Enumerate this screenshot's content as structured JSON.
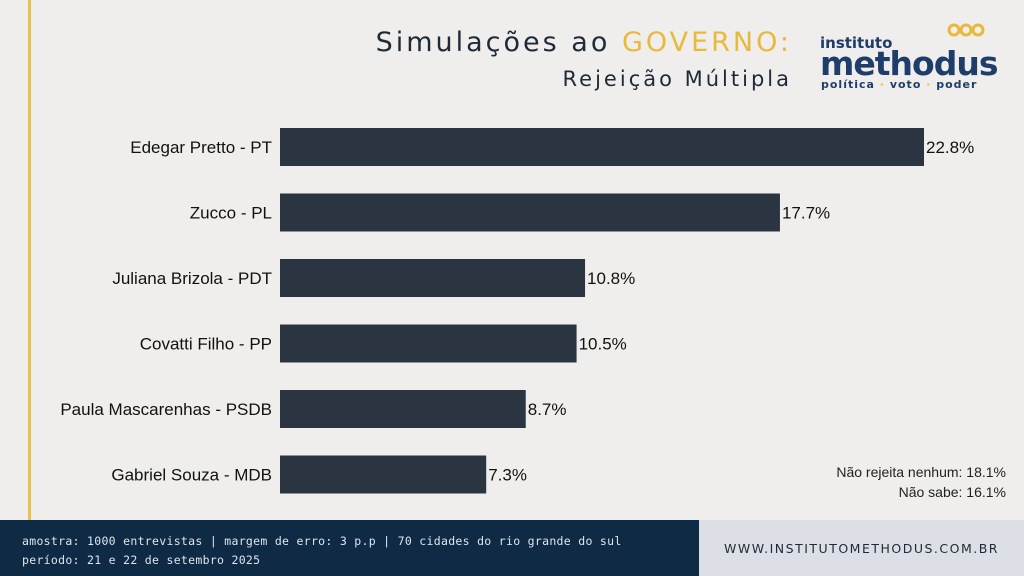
{
  "header": {
    "title_prefix": "Simulações ao ",
    "title_highlight": "GOVERNO:",
    "subtitle": "Rejeição Múltipla"
  },
  "logo": {
    "small": "instituto",
    "big": "methodus",
    "tag": [
      "política",
      "voto",
      "poder"
    ],
    "tag_separator": "·"
  },
  "colors": {
    "bar": "#2b3542",
    "accent": "#e8b93a",
    "footer_dark": "#0e2a45",
    "footer_light": "#dcdfe5"
  },
  "chart_data": {
    "type": "bar",
    "orientation": "horizontal",
    "categories": [
      "Edegar Pretto - PT",
      "Zucco - PL",
      "Juliana Brizola - PDT",
      "Covatti Filho - PP",
      "Paula Mascarenhas - PSDB",
      "Gabriel Souza - MDB"
    ],
    "values": [
      22.8,
      17.7,
      10.8,
      10.5,
      8.7,
      7.3
    ],
    "value_labels": [
      "22.8%",
      "17.7%",
      "10.8%",
      "10.5%",
      "8.7%",
      "7.3%"
    ],
    "xlim": [
      0,
      22.8
    ],
    "grid": false,
    "legend": "none"
  },
  "notes": [
    "Não rejeita nenhum: 18.1%",
    "Não sabe: 16.1%"
  ],
  "footer": {
    "line1": "amostra: 1000 entrevistas | margem de erro: 3 p.p | 70 cidades do rio grande do sul",
    "line2": "período: 21 e 22 de setembro 2025",
    "website": "WWW.INSTITUTOMETHODUS.COM.BR"
  }
}
